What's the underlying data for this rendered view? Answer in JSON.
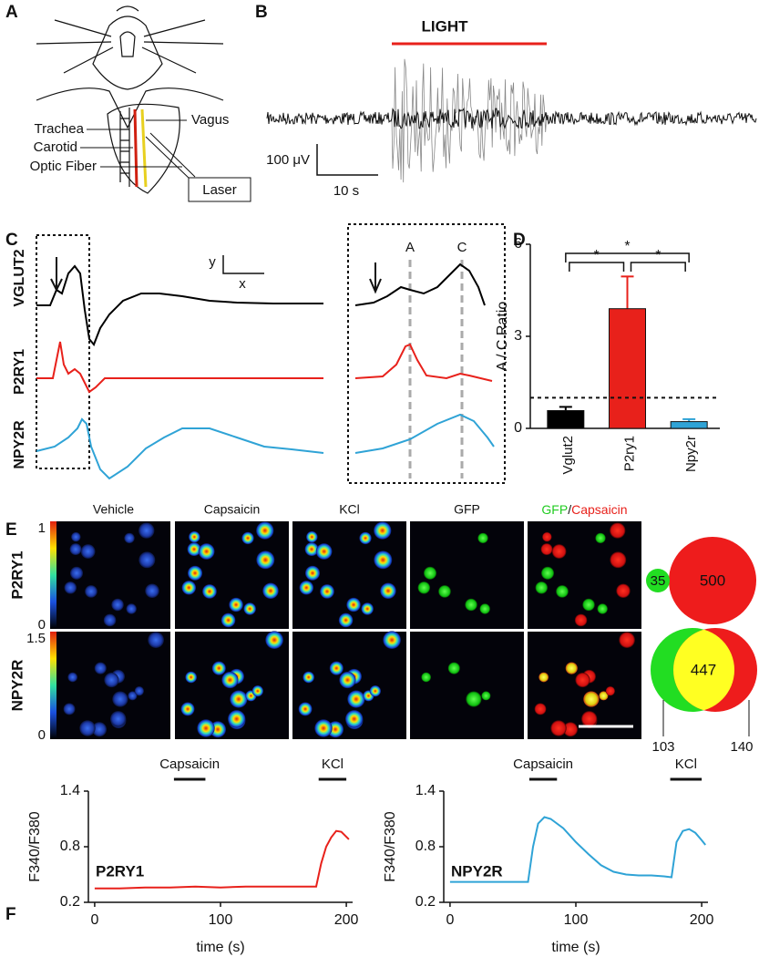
{
  "panels": [
    "A",
    "B",
    "C",
    "D",
    "E",
    "F"
  ],
  "panel_a": {
    "trachea": "Trachea",
    "carotid": "Carotid",
    "optic_fiber": "Optic Fiber",
    "vagus": "Vagus",
    "laser": "Laser"
  },
  "panel_b": {
    "stimulus": "LIGHT",
    "scale_y": "100 μV",
    "scale_x": "10 s"
  },
  "panel_c": {
    "genes": [
      {
        "name": "VGLUT2",
        "color": "#000000"
      },
      {
        "name": "P2RY1",
        "color": "#e8211b"
      },
      {
        "name": "NPY2R",
        "color": "#2fa3d6"
      }
    ],
    "scale_y": "y",
    "scale_x": "x",
    "peaks": [
      "A",
      "C"
    ]
  },
  "panel_e": {
    "columns": [
      "Vehicle",
      "Capsaicin",
      "KCl",
      "GFP"
    ],
    "merge": [
      "GFP",
      "/",
      "Capsaicin"
    ],
    "rows": [
      {
        "name": "P2RY1",
        "color": "#e8211b",
        "scale": [
          0,
          1
        ],
        "venn": {
          "gfp": 35,
          "capsaicin": 500
        }
      },
      {
        "name": "NPY2R",
        "color": "#2fa3d6",
        "scale": [
          0,
          1.5
        ],
        "venn": {
          "gfp_only": 103,
          "overlap": 447,
          "capsaicin_only": 140
        }
      }
    ]
  },
  "chart_data": [
    {
      "type": "bar",
      "categories": [
        "Vglut2",
        "P2ry1",
        "Npy2r"
      ],
      "values": [
        0.58,
        3.9,
        0.22
      ],
      "errors": [
        0.12,
        1.05,
        0.08
      ],
      "colors": [
        "#000000",
        "#e8211b",
        "#2fa3d6"
      ],
      "ylabel": "A / C Ratio",
      "ylim": [
        0,
        6
      ],
      "yticks": [
        0,
        3,
        6
      ],
      "reference_line": 1,
      "annotations": [
        {
          "text": "*",
          "between": [
            "Vglut2",
            "Npy2r"
          ]
        },
        {
          "text": "*",
          "between": [
            "Vglut2",
            "P2ry1"
          ]
        },
        {
          "text": "*",
          "between": [
            "P2ry1",
            "Npy2r"
          ]
        }
      ]
    },
    {
      "type": "line",
      "ylabel": "F340/F380",
      "xlabel": "time (s)",
      "xlim": [
        -5,
        205
      ],
      "xticks": [
        0,
        100,
        200
      ],
      "ylim": [
        0.2,
        1.4
      ],
      "yticks": [
        0.2,
        0.8,
        1.4
      ],
      "x": [
        0,
        20,
        40,
        60,
        80,
        100,
        120,
        140,
        160,
        176,
        180,
        184,
        188,
        192,
        196,
        202
      ],
      "series": [
        {
          "name": "P2RY1",
          "color": "#e8211b",
          "values": [
            0.35,
            0.35,
            0.36,
            0.36,
            0.37,
            0.36,
            0.37,
            0.37,
            0.37,
            0.37,
            0.62,
            0.8,
            0.9,
            0.97,
            0.96,
            0.88
          ]
        }
      ],
      "stimuli": [
        {
          "label": "Capsaicin",
          "start": 63,
          "end": 88
        },
        {
          "label": "KCl",
          "start": 178,
          "end": 200
        }
      ]
    },
    {
      "type": "line",
      "ylabel": "F340/F380",
      "xlabel": "time (s)",
      "xlim": [
        -5,
        205
      ],
      "xticks": [
        0,
        100,
        200
      ],
      "ylim": [
        0.2,
        1.4
      ],
      "yticks": [
        0.2,
        0.8,
        1.4
      ],
      "x": [
        0,
        30,
        62,
        66,
        70,
        75,
        80,
        90,
        100,
        110,
        120,
        130,
        140,
        150,
        160,
        170,
        176,
        180,
        185,
        190,
        195,
        200,
        203
      ],
      "series": [
        {
          "name": "NPY2R",
          "color": "#2fa3d6",
          "values": [
            0.42,
            0.42,
            0.42,
            0.8,
            1.05,
            1.12,
            1.1,
            1.0,
            0.85,
            0.72,
            0.6,
            0.53,
            0.5,
            0.49,
            0.49,
            0.48,
            0.47,
            0.85,
            0.97,
            0.99,
            0.95,
            0.87,
            0.82
          ]
        }
      ],
      "stimuli": [
        {
          "label": "Capsaicin",
          "start": 63,
          "end": 85
        },
        {
          "label": "KCl",
          "start": 175,
          "end": 200
        }
      ]
    }
  ]
}
